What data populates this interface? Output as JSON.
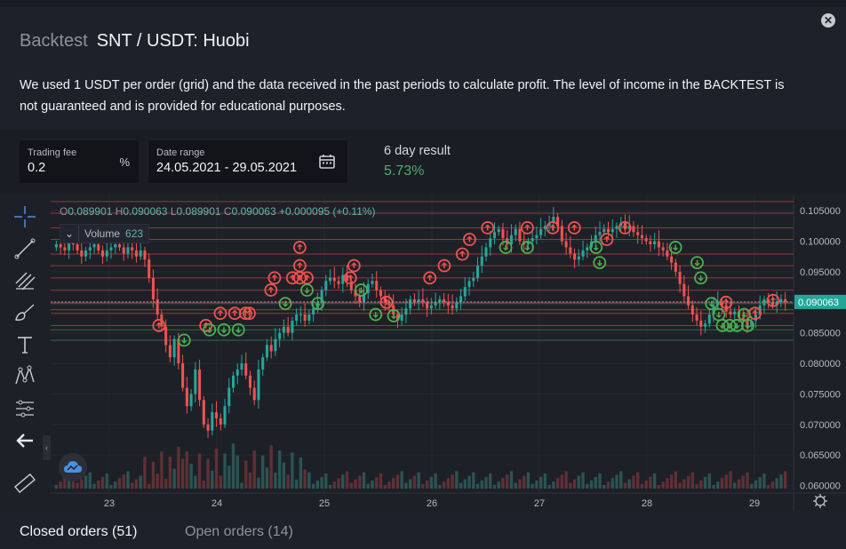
{
  "header": {
    "prefix": "Backtest",
    "title": "SNT / USDT: Huobi",
    "close_icon": "close-icon"
  },
  "description": "We used 1 USDT per order (grid) and the data received in the past periods to calculate profit. The level of income in the BACKTEST is not guaranteed and is provided for educational purposes.",
  "settings": {
    "trading_fee": {
      "label": "Trading fee",
      "value": "0.2",
      "suffix": "%"
    },
    "date_range": {
      "label": "Date range",
      "value": "24.05.2021 - 29.05.2021",
      "icon": "calendar-icon"
    },
    "result": {
      "label": "6 day result",
      "value": "5.73%"
    }
  },
  "colors": {
    "up": "#26a69a",
    "down": "#ef5350",
    "buy_marker": "#4caf50",
    "sell_marker": "#ef5350",
    "result_green": "#4caf6a",
    "last_price_bg": "#26a69a"
  },
  "toolbar": {
    "tools": [
      "crosshair-icon",
      "trendline-icon",
      "pitchfork-icon",
      "brush-icon",
      "text-icon",
      "pattern-icon",
      "measure-ruler-icon",
      "back-arrow-icon",
      "ruler-icon"
    ]
  },
  "legend": {
    "ohlc": {
      "o_label": "O",
      "o": "0.089901",
      "h_label": "H",
      "h": "0.090063",
      "l_label": "L",
      "l": "0.089901",
      "c_label": "C",
      "c": "0.090063",
      "change": "+0.000095 (+0.11%)"
    },
    "volume_label": "Volume",
    "volume_value": "623"
  },
  "chart_data": {
    "type": "candlestick",
    "x_ticks": [
      "23",
      "24",
      "25",
      "26",
      "27",
      "28",
      "29"
    ],
    "y_ticks": [
      "0.105000",
      "0.100000",
      "0.095000",
      "0.090000",
      "0.085000",
      "0.080000",
      "0.075000",
      "0.070000",
      "0.065000",
      "0.060000"
    ],
    "ylim": [
      0.0595,
      0.1075
    ],
    "last_price": "0.090063",
    "grid_sell_levels": [
      0.1065,
      0.1046,
      0.1022,
      0.1003,
      0.0979,
      0.096,
      0.094,
      0.092,
      0.09,
      0.0888,
      0.0882
    ],
    "grid_buy_levels": [
      0.0898,
      0.0862,
      0.0855,
      0.0838
    ],
    "price_path": [
      0.0995,
      0.099,
      0.0985,
      0.1005,
      0.0995,
      0.0985,
      0.0975,
      0.0985,
      0.099,
      0.0995,
      0.0985,
      0.0975,
      0.0985,
      0.099,
      0.0995,
      0.099,
      0.098,
      0.099,
      0.0985,
      0.0975,
      0.0985,
      0.097,
      0.094,
      0.0905,
      0.088,
      0.086,
      0.083,
      0.081,
      0.084,
      0.08,
      0.076,
      0.073,
      0.075,
      0.079,
      0.074,
      0.07,
      0.069,
      0.072,
      0.071,
      0.07,
      0.073,
      0.076,
      0.078,
      0.079,
      0.08,
      0.078,
      0.076,
      0.074,
      0.079,
      0.081,
      0.083,
      0.082,
      0.084,
      0.085,
      0.086,
      0.085,
      0.087,
      0.088,
      0.088,
      0.087,
      0.088,
      0.089,
      0.09,
      0.092,
      0.0935,
      0.094,
      0.0935,
      0.093,
      0.0945,
      0.0935,
      0.092,
      0.091,
      0.09,
      0.0915,
      0.093,
      0.0935,
      0.092,
      0.091,
      0.09,
      0.0895,
      0.088,
      0.087,
      0.088,
      0.089,
      0.0905,
      0.09,
      0.0905,
      0.09,
      0.089,
      0.0895,
      0.09,
      0.0905,
      0.09,
      0.0895,
      0.089,
      0.09,
      0.091,
      0.0925,
      0.0935,
      0.094,
      0.096,
      0.0975,
      0.099,
      0.1005,
      0.1015,
      0.102,
      0.1005,
      0.0995,
      0.101,
      0.102,
      0.1,
      0.0995,
      0.1,
      0.1005,
      0.101,
      0.102,
      0.1025,
      0.103,
      0.104,
      0.1025,
      0.1,
      0.099,
      0.098,
      0.097,
      0.0975,
      0.0985,
      0.099,
      0.1,
      0.101,
      0.1015,
      0.102,
      0.1015,
      0.102,
      0.1025,
      0.103,
      0.102,
      0.1025,
      0.1015,
      0.101,
      0.1005,
      0.1,
      0.0995,
      0.1,
      0.099,
      0.0985,
      0.0975,
      0.0965,
      0.095,
      0.093,
      0.091,
      0.0895,
      0.088,
      0.087,
      0.086,
      0.0865,
      0.088,
      0.0895,
      0.09,
      0.0895,
      0.0885,
      0.088,
      0.0885,
      0.0875,
      0.087,
      0.086,
      0.087,
      0.088,
      0.0895,
      0.0905,
      0.09,
      0.0895,
      0.09,
      0.0905,
      0.09
    ],
    "sell_markers": [
      [
        0.14,
        0.0862
      ],
      [
        0.205,
        0.0862
      ],
      [
        0.225,
        0.0882
      ],
      [
        0.245,
        0.0882
      ],
      [
        0.26,
        0.0882
      ],
      [
        0.265,
        0.0882
      ],
      [
        0.295,
        0.092
      ],
      [
        0.3,
        0.094
      ],
      [
        0.325,
        0.094
      ],
      [
        0.335,
        0.094
      ],
      [
        0.335,
        0.096
      ],
      [
        0.335,
        0.099
      ],
      [
        0.345,
        0.094
      ],
      [
        0.405,
        0.094
      ],
      [
        0.41,
        0.096
      ],
      [
        0.455,
        0.09
      ],
      [
        0.515,
        0.094
      ],
      [
        0.535,
        0.096
      ],
      [
        0.56,
        0.0979
      ],
      [
        0.57,
        0.1003
      ],
      [
        0.595,
        0.1022
      ],
      [
        0.65,
        0.1022
      ],
      [
        0.685,
        0.1022
      ],
      [
        0.715,
        0.1022
      ],
      [
        0.76,
        0.1003
      ],
      [
        0.785,
        0.1022
      ],
      [
        0.925,
        0.09
      ],
      [
        0.965,
        0.0882
      ],
      [
        0.99,
        0.0903
      ]
    ],
    "buy_markers": [
      [
        0.175,
        0.0838
      ],
      [
        0.21,
        0.0855
      ],
      [
        0.23,
        0.0855
      ],
      [
        0.25,
        0.0855
      ],
      [
        0.315,
        0.0898
      ],
      [
        0.345,
        0.092
      ],
      [
        0.36,
        0.0898
      ],
      [
        0.42,
        0.092
      ],
      [
        0.44,
        0.088
      ],
      [
        0.465,
        0.0878
      ],
      [
        0.62,
        0.099
      ],
      [
        0.65,
        0.099
      ],
      [
        0.745,
        0.099
      ],
      [
        0.75,
        0.0965
      ],
      [
        0.855,
        0.099
      ],
      [
        0.885,
        0.0965
      ],
      [
        0.89,
        0.094
      ],
      [
        0.905,
        0.0898
      ],
      [
        0.915,
        0.088
      ],
      [
        0.92,
        0.0862
      ],
      [
        0.93,
        0.0862
      ],
      [
        0.94,
        0.0862
      ],
      [
        0.95,
        0.088
      ],
      [
        0.955,
        0.0862
      ]
    ]
  },
  "tabs": {
    "closed": "Closed orders (51)",
    "open": "Open orders (14)"
  }
}
